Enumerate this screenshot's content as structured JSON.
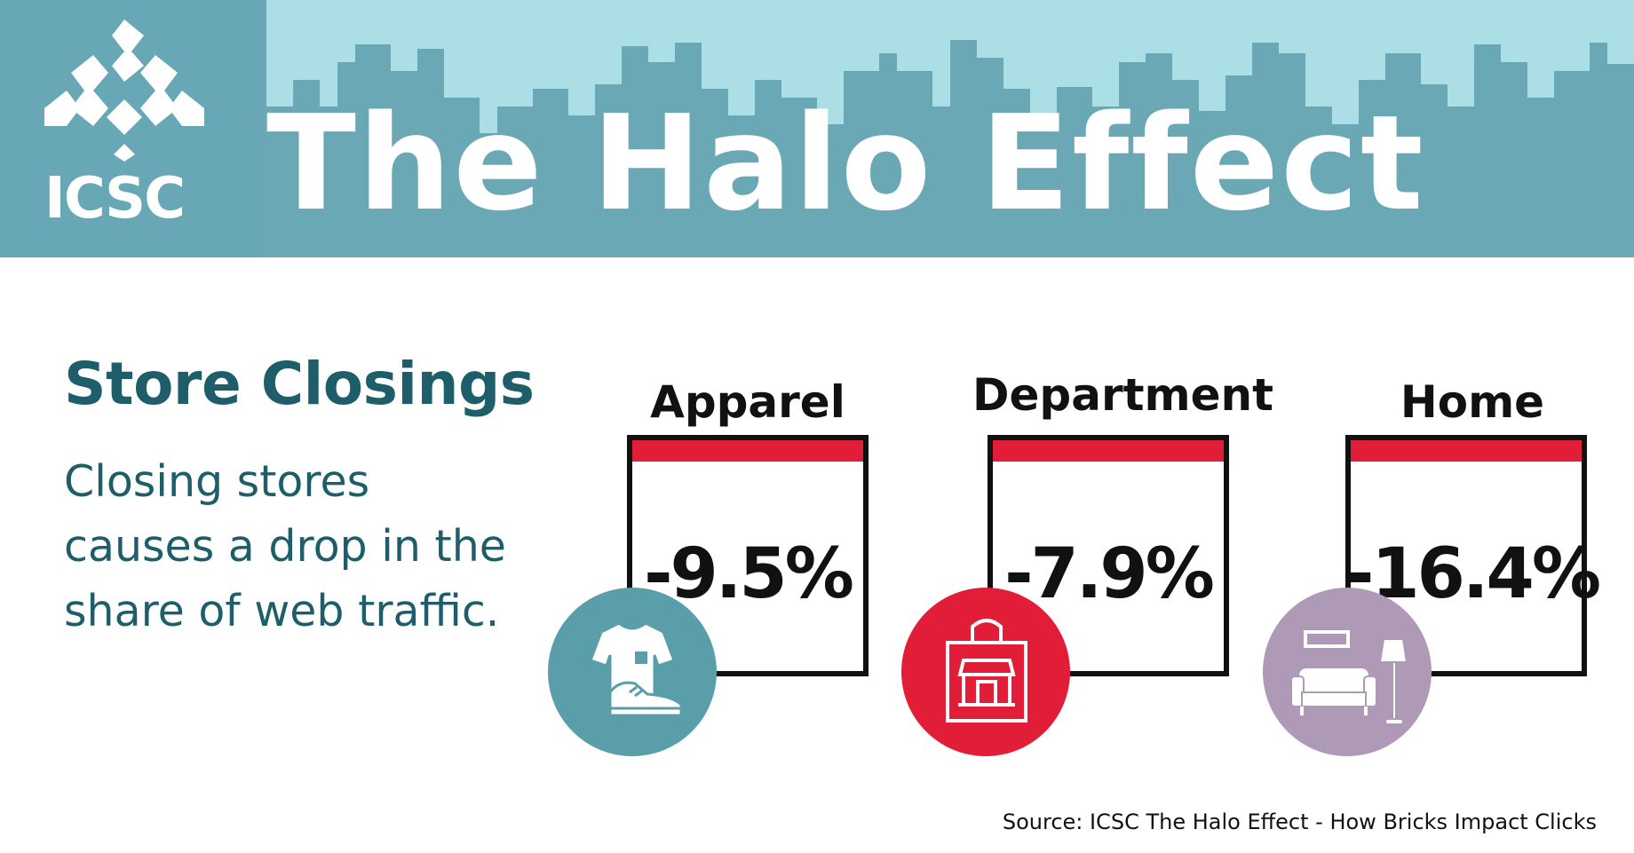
{
  "header": {
    "logo_text": "ICSC",
    "title": "The Halo Effect"
  },
  "intro": {
    "title": "Store Closings",
    "description": "Closing stores causes a drop in the share of web traffic."
  },
  "categories": [
    {
      "label": "Apparel",
      "value": "-9.5%",
      "icon": "apparel-icon",
      "color": "#5a9eaa"
    },
    {
      "label": "Department",
      "value": "-7.9%",
      "icon": "shopping-bag-icon",
      "color": "#e21d38"
    },
    {
      "label": "Home",
      "value": "-16.4%",
      "icon": "home-furniture-icon",
      "color": "#ae9ab6"
    }
  ],
  "colors": {
    "banner": "#6ba8b6",
    "sky": "#acdee6",
    "text_teal": "#1d5e6a",
    "accent_red": "#e21d38"
  },
  "source": "Source: ICSC The Halo Effect - How Bricks Impact Clicks"
}
